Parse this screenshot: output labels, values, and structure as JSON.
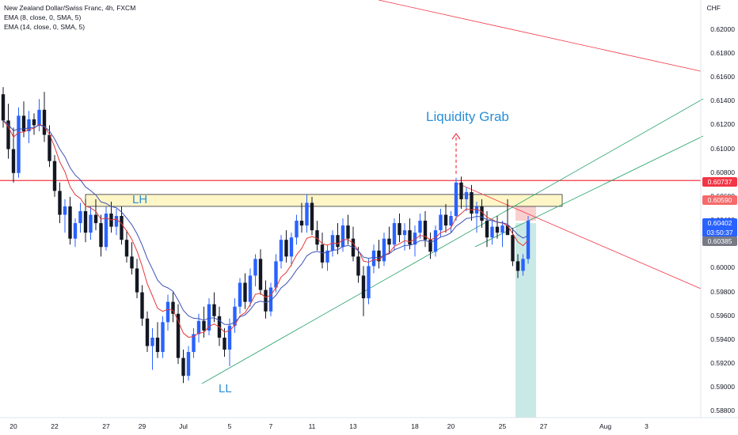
{
  "legend": {
    "symbol": "New Zealand Dollar/Swiss Franc, 4h, FXCM",
    "ema1": "EMA (8, close, 0, SMA, 5)",
    "ema2": "EMA (14, close, 0, SMA, 5)"
  },
  "currency_label": "CHF",
  "annotations": {
    "liquidity": "Liquidity Grab",
    "lh": "LH",
    "ll": "LL"
  },
  "price_tags": {
    "red_line": "0.60737",
    "box": "0.60590",
    "current_price": "0.60402",
    "countdown": "03:50:37",
    "ema": "0.60385"
  },
  "colors": {
    "bull": "#2962ff",
    "bear": "#131722",
    "ema_fast": "#e53935",
    "ema_slow": "#3f51b5",
    "resistance": "#f23645",
    "trend": "#26a269",
    "box_fill": "#fff6c8",
    "target": "#b2dfdb",
    "stop": "#f8c8c8"
  },
  "chart_data": {
    "type": "candlestick",
    "title": "New Zealand Dollar/Swiss Franc, 4h, FXCM",
    "ylabel": "CHF",
    "ylim": [
      0.5875,
      0.6225
    ],
    "yticks": [
      "0.62000",
      "0.61800",
      "0.61600",
      "0.61400",
      "0.61200",
      "0.61000",
      "0.60800",
      "0.60600",
      "0.60400",
      "0.60200",
      "0.60000",
      "0.59800",
      "0.59600",
      "0.59400",
      "0.59200",
      "0.59000",
      "0.58800"
    ],
    "xticks": [
      {
        "label": "20",
        "i": 2
      },
      {
        "label": "22",
        "i": 10
      },
      {
        "label": "27",
        "i": 20
      },
      {
        "label": "29",
        "i": 27
      },
      {
        "label": "Jul",
        "i": 35
      },
      {
        "label": "5",
        "i": 44
      },
      {
        "label": "7",
        "i": 52
      },
      {
        "label": "11",
        "i": 60
      },
      {
        "label": "13",
        "i": 68
      },
      {
        "label": "18",
        "i": 80
      },
      {
        "label": "20",
        "i": 87
      },
      {
        "label": "25",
        "i": 97
      },
      {
        "label": "27",
        "i": 105
      },
      {
        "label": "Aug",
        "i": 117
      },
      {
        "label": "3",
        "i": 125
      }
    ],
    "candles": [
      [
        0.6146,
        0.6152,
        0.6118,
        0.6124
      ],
      [
        0.6124,
        0.6138,
        0.6092,
        0.61
      ],
      [
        0.61,
        0.6118,
        0.6072,
        0.608
      ],
      [
        0.608,
        0.6135,
        0.6076,
        0.6128
      ],
      [
        0.6128,
        0.614,
        0.611,
        0.6115
      ],
      [
        0.6115,
        0.6132,
        0.6105,
        0.6125
      ],
      [
        0.6125,
        0.613,
        0.6112,
        0.612
      ],
      [
        0.612,
        0.6142,
        0.6115,
        0.6133
      ],
      [
        0.6133,
        0.6148,
        0.6106,
        0.6112
      ],
      [
        0.6112,
        0.612,
        0.6085,
        0.609
      ],
      [
        0.609,
        0.6095,
        0.606,
        0.6065
      ],
      [
        0.6065,
        0.6072,
        0.6038,
        0.6045
      ],
      [
        0.6045,
        0.6058,
        0.603,
        0.6052
      ],
      [
        0.6052,
        0.606,
        0.602,
        0.6025
      ],
      [
        0.6025,
        0.6042,
        0.6018,
        0.6038
      ],
      [
        0.6038,
        0.6055,
        0.603,
        0.6048
      ],
      [
        0.6048,
        0.6058,
        0.6022,
        0.603
      ],
      [
        0.603,
        0.6052,
        0.6024,
        0.6045
      ],
      [
        0.6045,
        0.6058,
        0.6032,
        0.6038
      ],
      [
        0.6038,
        0.6045,
        0.601,
        0.6018
      ],
      [
        0.6018,
        0.6052,
        0.6015,
        0.6046
      ],
      [
        0.6046,
        0.6056,
        0.603,
        0.6035
      ],
      [
        0.6035,
        0.605,
        0.6028,
        0.6044
      ],
      [
        0.6044,
        0.6052,
        0.602,
        0.6024
      ],
      [
        0.6024,
        0.6032,
        0.6005,
        0.601
      ],
      [
        0.601,
        0.6022,
        0.5995,
        0.6
      ],
      [
        0.6,
        0.6008,
        0.5975,
        0.598
      ],
      [
        0.598,
        0.5986,
        0.5952,
        0.5958
      ],
      [
        0.5958,
        0.5964,
        0.593,
        0.5935
      ],
      [
        0.5935,
        0.595,
        0.5915,
        0.5942
      ],
      [
        0.5942,
        0.5955,
        0.5925,
        0.593
      ],
      [
        0.593,
        0.596,
        0.5925,
        0.5955
      ],
      [
        0.5955,
        0.5978,
        0.5948,
        0.5972
      ],
      [
        0.5972,
        0.598,
        0.5955,
        0.5962
      ],
      [
        0.5962,
        0.597,
        0.592,
        0.5925
      ],
      [
        0.5925,
        0.5932,
        0.5904,
        0.591
      ],
      [
        0.591,
        0.5935,
        0.5906,
        0.593
      ],
      [
        0.593,
        0.595,
        0.5925,
        0.5945
      ],
      [
        0.5945,
        0.5962,
        0.5938,
        0.5956
      ],
      [
        0.5956,
        0.5968,
        0.5942,
        0.5948
      ],
      [
        0.5948,
        0.5975,
        0.5944,
        0.597
      ],
      [
        0.597,
        0.598,
        0.5955,
        0.596
      ],
      [
        0.596,
        0.5968,
        0.5935,
        0.5942
      ],
      [
        0.5942,
        0.595,
        0.5926,
        0.5932
      ],
      [
        0.5932,
        0.5958,
        0.5918,
        0.5952
      ],
      [
        0.5952,
        0.5975,
        0.5946,
        0.5968
      ],
      [
        0.5968,
        0.5992,
        0.5962,
        0.5988
      ],
      [
        0.5988,
        0.5996,
        0.5966,
        0.5972
      ],
      [
        0.5972,
        0.6,
        0.5968,
        0.5994
      ],
      [
        0.5994,
        0.6012,
        0.5985,
        0.6008
      ],
      [
        0.6008,
        0.6016,
        0.5978,
        0.5982
      ],
      [
        0.5982,
        0.599,
        0.5958,
        0.5964
      ],
      [
        0.5964,
        0.5988,
        0.596,
        0.5984
      ],
      [
        0.5984,
        0.6012,
        0.598,
        0.6006
      ],
      [
        0.6006,
        0.6028,
        0.6,
        0.6024
      ],
      [
        0.6024,
        0.6032,
        0.6005,
        0.601
      ],
      [
        0.601,
        0.603,
        0.6002,
        0.6026
      ],
      [
        0.6026,
        0.6045,
        0.602,
        0.604
      ],
      [
        0.604,
        0.6055,
        0.603,
        0.6036
      ],
      [
        0.6036,
        0.6062,
        0.603,
        0.6055
      ],
      [
        0.6055,
        0.606,
        0.6028,
        0.6032
      ],
      [
        0.6032,
        0.604,
        0.6015,
        0.602
      ],
      [
        0.602,
        0.603,
        0.6,
        0.6005
      ],
      [
        0.6005,
        0.602,
        0.5998,
        0.6015
      ],
      [
        0.6015,
        0.6032,
        0.601,
        0.6028
      ],
      [
        0.6028,
        0.6038,
        0.6012,
        0.6018
      ],
      [
        0.6018,
        0.6042,
        0.6014,
        0.6036
      ],
      [
        0.6036,
        0.6045,
        0.602,
        0.6025
      ],
      [
        0.6025,
        0.6035,
        0.6006,
        0.601
      ],
      [
        0.601,
        0.6018,
        0.5988,
        0.5994
      ],
      [
        0.5994,
        0.6002,
        0.596,
        0.5975
      ],
      [
        0.5975,
        0.6008,
        0.597,
        0.6002
      ],
      [
        0.6002,
        0.602,
        0.5996,
        0.6015
      ],
      [
        0.6015,
        0.6024,
        0.6,
        0.6006
      ],
      [
        0.6006,
        0.603,
        0.6002,
        0.6025
      ],
      [
        0.6025,
        0.6035,
        0.6012,
        0.602
      ],
      [
        0.602,
        0.6042,
        0.6015,
        0.6038
      ],
      [
        0.6038,
        0.6046,
        0.6022,
        0.6028
      ],
      [
        0.6028,
        0.6038,
        0.6015,
        0.6032
      ],
      [
        0.6032,
        0.6042,
        0.6016,
        0.602
      ],
      [
        0.602,
        0.6036,
        0.601,
        0.603
      ],
      [
        0.603,
        0.6046,
        0.6025,
        0.604
      ],
      [
        0.604,
        0.6048,
        0.6018,
        0.6024
      ],
      [
        0.6024,
        0.603,
        0.6008,
        0.6014
      ],
      [
        0.6014,
        0.6036,
        0.601,
        0.6032
      ],
      [
        0.6032,
        0.605,
        0.6026,
        0.6045
      ],
      [
        0.6045,
        0.6054,
        0.603,
        0.6036
      ],
      [
        0.6036,
        0.6048,
        0.603,
        0.6044
      ],
      [
        0.6044,
        0.6076,
        0.604,
        0.6072
      ],
      [
        0.6072,
        0.6077,
        0.605,
        0.6058
      ],
      [
        0.6058,
        0.6068,
        0.6048,
        0.6064
      ],
      [
        0.6064,
        0.607,
        0.604,
        0.6046
      ],
      [
        0.6046,
        0.6056,
        0.603,
        0.6052
      ],
      [
        0.6052,
        0.6058,
        0.6034,
        0.604
      ],
      [
        0.604,
        0.6048,
        0.6018,
        0.6026
      ],
      [
        0.6026,
        0.604,
        0.602,
        0.6035
      ],
      [
        0.6035,
        0.6044,
        0.6025,
        0.603
      ],
      [
        0.603,
        0.604,
        0.6018,
        0.6036
      ],
      [
        0.6036,
        0.6058,
        0.603,
        0.6028
      ],
      [
        0.6028,
        0.6034,
        0.6002,
        0.6006
      ],
      [
        0.6006,
        0.6012,
        0.5992,
        0.5998
      ],
      [
        0.5998,
        0.6012,
        0.5994,
        0.6008
      ],
      [
        0.6008,
        0.6044,
        0.6004,
        0.604
      ]
    ]
  }
}
